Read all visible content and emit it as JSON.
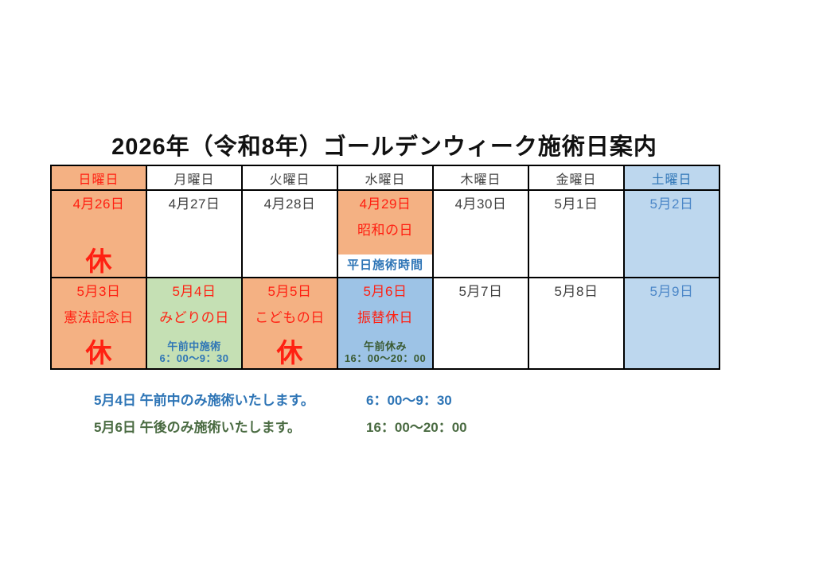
{
  "title": "2026年（令和8年）ゴールデンウィーク施術日案内",
  "colors": {
    "holiday_cell_bg": "#f4b183",
    "saturday_cell_bg": "#bdd7ee",
    "substitute_holiday_cell_bg": "#9dc3e6",
    "greenery_day_cell_bg": "#c5e0b4",
    "red_text": "#ff2012",
    "blue_text": "#2e75b6",
    "saturday_date_text": "#4c87c8",
    "weekday_text": "#404040",
    "dark_green_text": "#3a5a31",
    "note_green_text": "#4a6b42",
    "border": "#000000"
  },
  "calendar": {
    "weekdays": [
      {
        "label": "日曜日"
      },
      {
        "label": "月曜日"
      },
      {
        "label": "火曜日"
      },
      {
        "label": "水曜日"
      },
      {
        "label": "木曜日"
      },
      {
        "label": "金曜日"
      },
      {
        "label": "土曜日"
      }
    ],
    "weeks": [
      {
        "cells": [
          {
            "date": "4月26日",
            "closed": "休"
          },
          {
            "date": "4月27日"
          },
          {
            "date": "4月28日"
          },
          {
            "date": "4月29日",
            "holiday": "昭和の日",
            "band": "平日施術時間"
          },
          {
            "date": "4月30日"
          },
          {
            "date": "5月1日"
          },
          {
            "date": "5月2日"
          }
        ]
      },
      {
        "cells": [
          {
            "date": "5月3日",
            "holiday": "憲法記念日",
            "closed": "休"
          },
          {
            "date": "5月4日",
            "holiday": "みどりの日",
            "sched_title": "午前中施術",
            "sched_time": "6：00～9：30"
          },
          {
            "date": "5月5日",
            "holiday": "こどもの日",
            "closed": "休"
          },
          {
            "date": "5月6日",
            "holiday": "振替休日",
            "sched_title": "午前休み",
            "sched_time": "16：00～20：00"
          },
          {
            "date": "5月7日"
          },
          {
            "date": "5月8日"
          },
          {
            "date": "5月9日"
          }
        ]
      }
    ]
  },
  "notes": [
    {
      "label": "5月4日 午前中のみ施術いたします。",
      "time": "6：00～9：30"
    },
    {
      "label": "5月6日 午後のみ施術いたします。",
      "time": "16：00～20：00"
    }
  ]
}
